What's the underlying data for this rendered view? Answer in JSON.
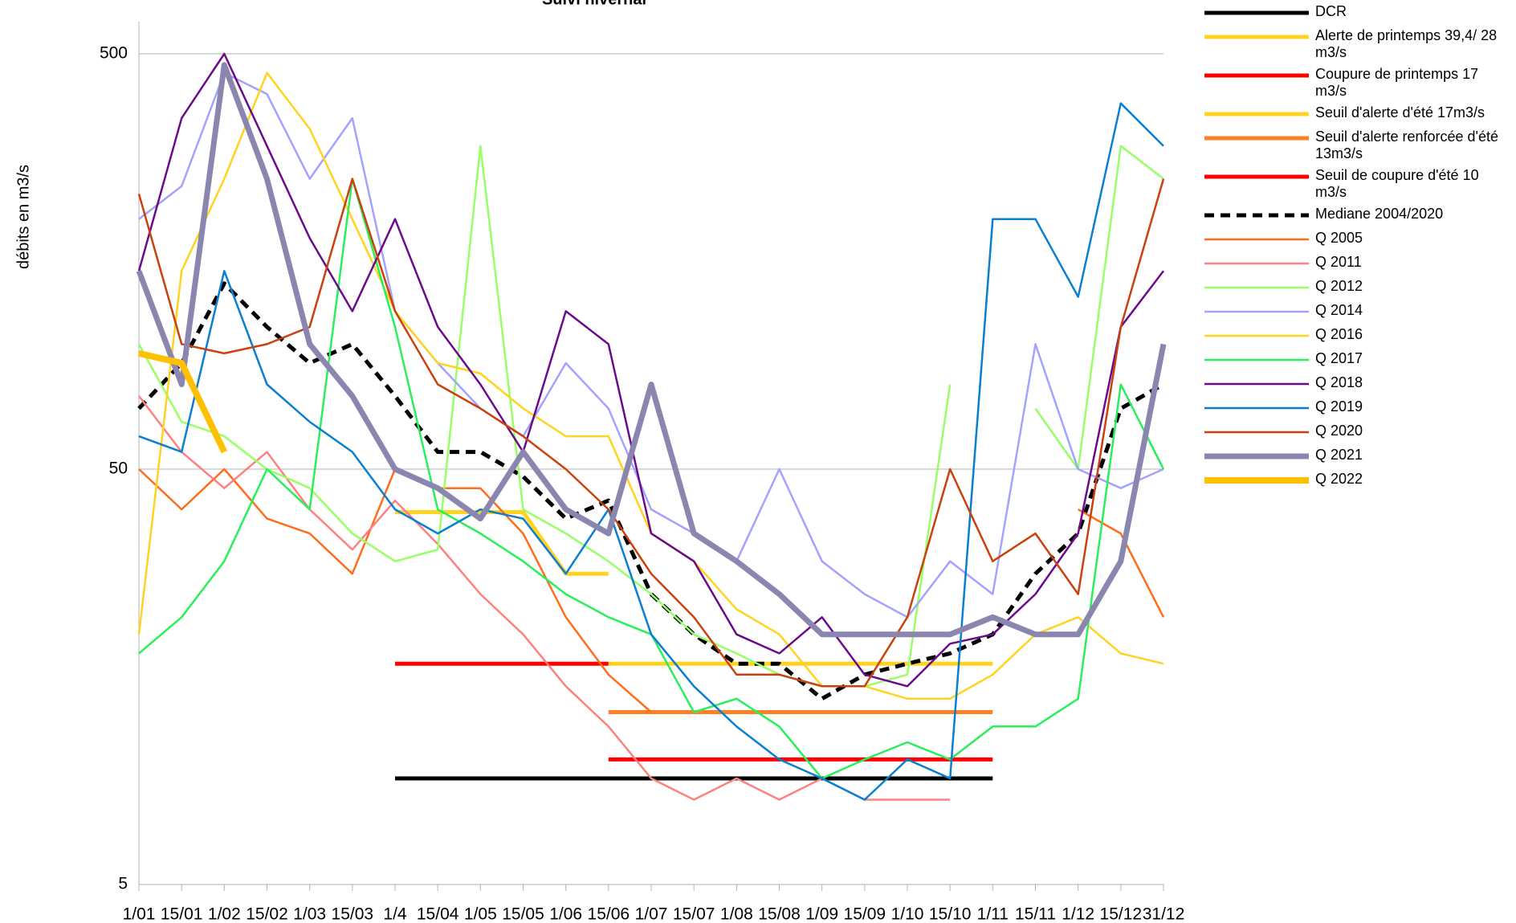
{
  "chart_data": {
    "type": "line",
    "title": "Suivi hivernal",
    "y_label": "débits en m3/s",
    "log_y": true,
    "grid": true,
    "categories": [
      "1/01",
      "15/01",
      "1/02",
      "15/02",
      "1/03",
      "15/03",
      "1/4",
      "15/04",
      "1/05",
      "15/05",
      "1/06",
      "15/06",
      "1/07",
      "15/07",
      "1/08",
      "15/08",
      "1/09",
      "15/09",
      "1/10",
      "15/10",
      "1/11",
      "15/11",
      "1/12",
      "15/12",
      "31/12"
    ],
    "ylim": [
      5,
      500
    ],
    "yticks": [
      5,
      50,
      500
    ],
    "series": [
      {
        "name": "DCR",
        "color": "#000000",
        "width": 5,
        "values": [
          null,
          null,
          null,
          null,
          null,
          null,
          9,
          9,
          9,
          9,
          9,
          9,
          9,
          9,
          9,
          9,
          9,
          9,
          9,
          9,
          9,
          null,
          null,
          null,
          null
        ]
      },
      {
        "name": "Alerte de printemps 39,4/ 28 m3/s",
        "color": "#ffd320",
        "width": 5,
        "values": [
          null,
          null,
          null,
          null,
          null,
          null,
          39.4,
          39.4,
          39.4,
          39.4,
          28,
          28,
          null,
          null,
          null,
          null,
          null,
          null,
          null,
          null,
          null,
          null,
          null,
          null,
          null
        ]
      },
      {
        "name": "Coupure de printemps 17 m3/s",
        "color": "#ff0000",
        "width": 5,
        "values": [
          null,
          null,
          null,
          null,
          null,
          null,
          17,
          17,
          17,
          17,
          17,
          17,
          null,
          null,
          null,
          null,
          null,
          null,
          null,
          null,
          null,
          null,
          null,
          null,
          null
        ]
      },
      {
        "name": "Seuil d'alerte d'été 17m3/s",
        "color": "#ffd320",
        "width": 5,
        "values": [
          null,
          null,
          null,
          null,
          null,
          null,
          null,
          null,
          null,
          null,
          null,
          17,
          17,
          17,
          17,
          17,
          17,
          17,
          17,
          17,
          17,
          null,
          null,
          null,
          null
        ]
      },
      {
        "name": "Seuil d'alerte renforcée d'été 13m3/s",
        "color": "#ff7f27",
        "width": 5,
        "values": [
          null,
          null,
          null,
          null,
          null,
          null,
          null,
          null,
          null,
          null,
          null,
          13,
          13,
          13,
          13,
          13,
          13,
          13,
          13,
          13,
          13,
          null,
          null,
          null,
          null
        ]
      },
      {
        "name": "Seuil de coupure d'été 10 m3/s",
        "color": "#ff0000",
        "width": 5,
        "values": [
          null,
          null,
          null,
          null,
          null,
          null,
          null,
          null,
          null,
          null,
          null,
          10,
          10,
          10,
          10,
          10,
          10,
          10,
          10,
          10,
          10,
          null,
          null,
          null,
          null
        ]
      },
      {
        "name": "Mediane 2004/2020",
        "color": "#000000",
        "width": 5,
        "dash": true,
        "values": [
          70,
          90,
          140,
          110,
          90,
          100,
          75,
          55,
          55,
          48,
          38,
          42,
          25,
          20,
          17,
          17,
          14,
          16,
          17,
          18,
          20,
          28,
          35,
          70,
          80
        ]
      },
      {
        "name": "Q 2005",
        "color": "#ff6d1a",
        "width": 2.5,
        "values": [
          50,
          40,
          50,
          38,
          35,
          28,
          50,
          45,
          45,
          35,
          22,
          16,
          13,
          null,
          null,
          null,
          null,
          null,
          null,
          null,
          null,
          null,
          40,
          35,
          22
        ]
      },
      {
        "name": "Q 2011",
        "color": "#ff8080",
        "width": 2.5,
        "values": [
          75,
          55,
          45,
          55,
          40,
          32,
          42,
          33,
          25,
          20,
          15,
          12,
          9,
          8,
          9,
          8,
          9,
          8,
          8,
          8,
          null,
          null,
          null,
          null,
          null
        ]
      },
      {
        "name": "Q 2012",
        "color": "#99ff66",
        "width": 2.5,
        "values": [
          100,
          65,
          60,
          50,
          45,
          35,
          30,
          32,
          300,
          40,
          35,
          30,
          25,
          20,
          18,
          16,
          15,
          15,
          16,
          80,
          null,
          70,
          50,
          300,
          250
        ]
      },
      {
        "name": "Q 2014",
        "color": "#a3a3ff",
        "width": 2.5,
        "values": [
          200,
          240,
          450,
          400,
          250,
          350,
          120,
          90,
          70,
          60,
          90,
          70,
          40,
          35,
          30,
          50,
          30,
          25,
          22,
          30,
          25,
          100,
          50,
          45,
          50
        ]
      },
      {
        "name": "Q 2016",
        "color": "#ffd320",
        "width": 2.5,
        "values": [
          20,
          150,
          250,
          450,
          330,
          200,
          120,
          90,
          85,
          70,
          60,
          60,
          35,
          30,
          23,
          20,
          15,
          15,
          14,
          14,
          16,
          20,
          22,
          18,
          17
        ]
      },
      {
        "name": "Q 2017",
        "color": "#2aef5a",
        "width": 2.5,
        "values": [
          18,
          22,
          30,
          50,
          40,
          250,
          110,
          40,
          35,
          30,
          25,
          22,
          20,
          13,
          14,
          12,
          9,
          10,
          11,
          10,
          12,
          12,
          14,
          80,
          50
        ]
      },
      {
        "name": "Q 2018",
        "color": "#6b0b8a",
        "width": 2.5,
        "values": [
          150,
          350,
          500,
          300,
          180,
          120,
          200,
          110,
          80,
          55,
          120,
          100,
          35,
          30,
          20,
          18,
          22,
          16,
          15,
          19,
          20,
          25,
          35,
          110,
          150
        ]
      },
      {
        "name": "Q 2019",
        "color": "#0a7fd0",
        "width": 2.5,
        "values": [
          60,
          55,
          150,
          80,
          65,
          55,
          40,
          35,
          40,
          38,
          28,
          40,
          20,
          15,
          12,
          10,
          9,
          8,
          10,
          9,
          200,
          200,
          130,
          380,
          300
        ]
      },
      {
        "name": "Q 2020",
        "color": "#c9410f",
        "width": 2.5,
        "values": [
          230,
          100,
          95,
          100,
          110,
          250,
          120,
          80,
          70,
          60,
          50,
          40,
          28,
          22,
          16,
          16,
          15,
          15,
          22,
          50,
          30,
          35,
          25,
          110,
          250
        ]
      },
      {
        "name": "Q 2021",
        "color": "#8b86b0",
        "width": 7,
        "values": [
          150,
          80,
          470,
          250,
          100,
          75,
          50,
          45,
          38,
          55,
          40,
          35,
          80,
          35,
          30,
          25,
          20,
          20,
          20,
          20,
          22,
          20,
          20,
          30,
          100
        ]
      },
      {
        "name": "Q 2022",
        "color": "#ffc000",
        "width": 8,
        "values": [
          95,
          90,
          55,
          null,
          null,
          null,
          null,
          null,
          null,
          null,
          null,
          null,
          null,
          null,
          null,
          null,
          null,
          null,
          null,
          null,
          null,
          null,
          null,
          null,
          null
        ]
      }
    ]
  }
}
